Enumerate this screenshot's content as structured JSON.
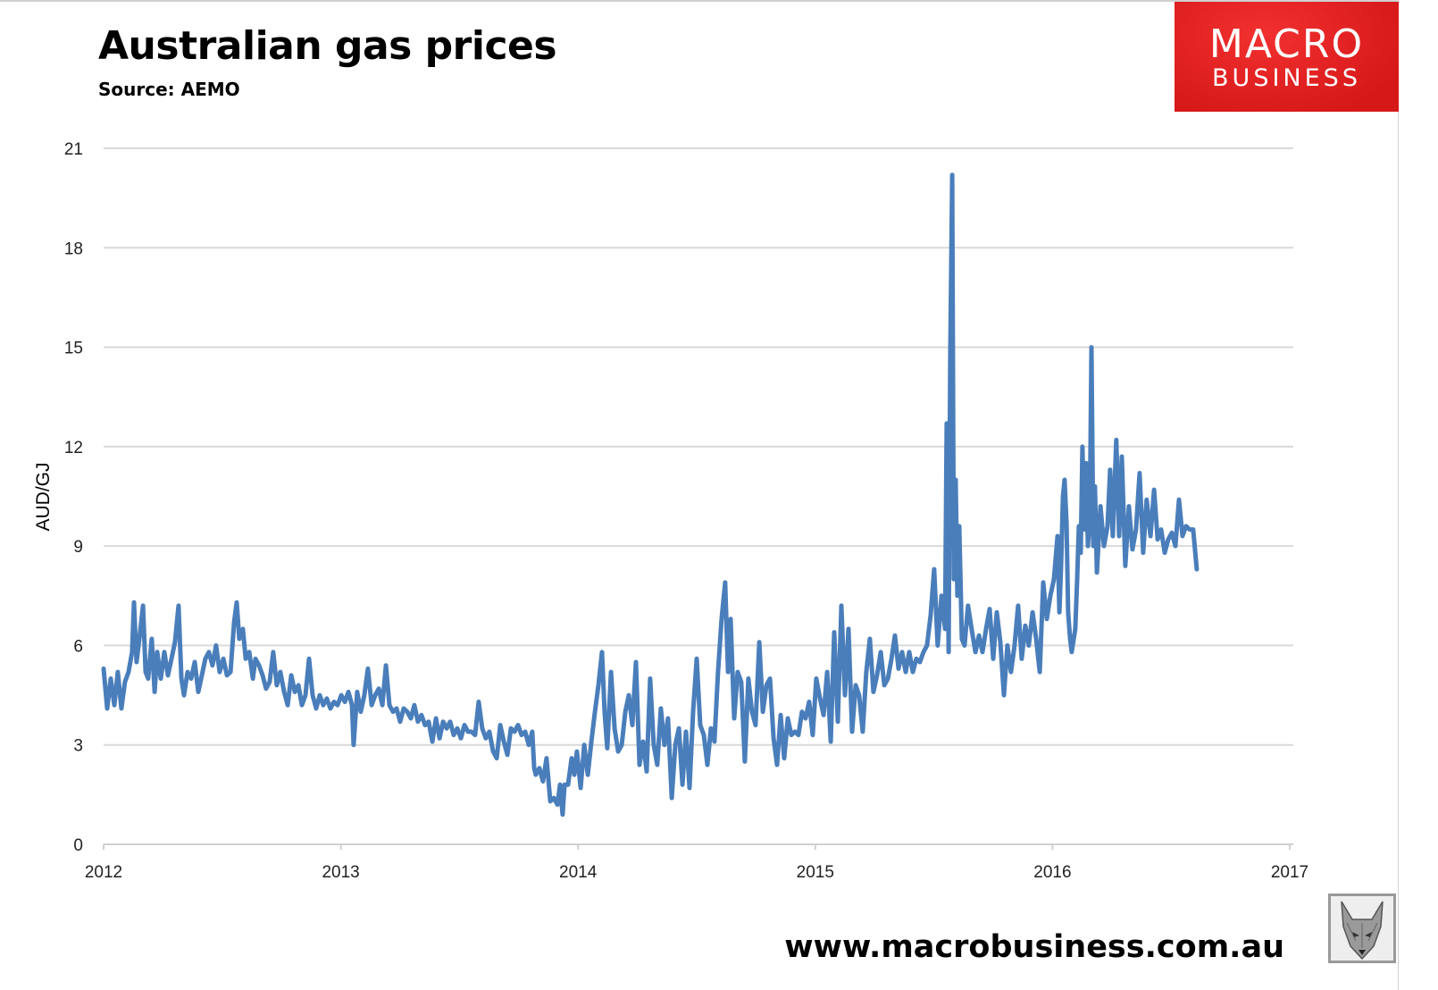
{
  "header": {
    "title": "Australian gas prices",
    "source": "Source: AEMO"
  },
  "logo": {
    "line1": "MACRO",
    "line2": "BUSINESS",
    "color": "#e02020"
  },
  "footer": {
    "website": "www.macrobusiness.com.au",
    "fox_logo": "fox-head-icon"
  },
  "chart_data": {
    "type": "line",
    "title": "Australian gas prices",
    "xlabel": "",
    "ylabel": "AUD/GJ",
    "xlim": [
      2012,
      2017
    ],
    "ylim": [
      0,
      21
    ],
    "x_ticks": [
      "2012",
      "2013",
      "2014",
      "2015",
      "2016",
      "2017"
    ],
    "y_ticks": [
      "0",
      "3",
      "6",
      "9",
      "12",
      "15",
      "18",
      "21"
    ],
    "grid": "horizontal",
    "line_color": "#4a7ebb",
    "series": [
      {
        "x": [
          2012.0,
          2012.015,
          2012.03,
          2012.045,
          2012.06,
          2012.075,
          2012.09,
          2012.105,
          2012.12,
          2012.128,
          2012.139,
          2012.154,
          2012.166,
          2012.177,
          2012.188,
          2012.203,
          2012.215,
          2012.226,
          2012.241,
          2012.256,
          2012.271,
          2012.286,
          2012.301,
          2012.316,
          2012.328,
          2012.339,
          2012.354,
          2012.369,
          2012.384,
          2012.399,
          2012.414,
          2012.429,
          2012.444,
          2012.459,
          2012.474,
          2012.489,
          2012.505,
          2012.52,
          2012.535,
          2012.55,
          2012.561,
          2012.572,
          2012.587,
          2012.599,
          2012.614,
          2012.629,
          2012.64,
          2012.655,
          2012.67,
          2012.685,
          2012.7,
          2012.715,
          2012.73,
          2012.745,
          2012.761,
          2012.776,
          2012.791,
          2012.806,
          2012.821,
          2012.836,
          2012.851,
          2012.866,
          2012.881,
          2012.896,
          2012.911,
          2012.926,
          2012.941,
          2012.956,
          2012.971,
          2012.986,
          2013.002,
          2013.017,
          2013.032,
          2013.047,
          2013.054,
          2013.069,
          2013.084,
          2013.099,
          2013.114,
          2013.13,
          2013.145,
          2013.16,
          2013.175,
          2013.19,
          2013.205,
          2013.22,
          2013.235,
          2013.25,
          2013.265,
          2013.28,
          2013.295,
          2013.31,
          2013.325,
          2013.34,
          2013.355,
          2013.37,
          2013.386,
          2013.401,
          2013.416,
          2013.431,
          2013.446,
          2013.461,
          2013.476,
          2013.491,
          2013.506,
          2013.521,
          2013.536,
          2013.551,
          2013.566,
          2013.581,
          2013.596,
          2013.611,
          2013.626,
          2013.642,
          2013.657,
          2013.672,
          2013.687,
          2013.702,
          2013.717,
          2013.732,
          2013.747,
          2013.762,
          2013.777,
          2013.792,
          2013.807,
          2013.815,
          2013.822,
          2013.837,
          2013.852,
          2013.867,
          2013.883,
          2013.898,
          2013.913,
          2013.924,
          2013.935,
          2013.943,
          2013.958,
          2013.973,
          2013.984,
          2013.995,
          2014.011,
          2014.026,
          2014.041,
          2014.056,
          2014.071,
          2014.086,
          2014.101,
          2014.112,
          2014.123,
          2014.139,
          2014.154,
          2014.169,
          2014.184,
          2014.199,
          2014.214,
          2014.229,
          2014.244,
          2014.259,
          2014.274,
          2014.289,
          2014.304,
          2014.319,
          2014.334,
          2014.349,
          2014.364,
          2014.379,
          2014.395,
          2014.41,
          2014.425,
          2014.44,
          2014.455,
          2014.47,
          2014.485,
          2014.5,
          2014.515,
          2014.53,
          2014.545,
          2014.56,
          2014.575,
          2014.59,
          2014.605,
          2014.62,
          2014.632,
          2014.643,
          2014.658,
          2014.673,
          2014.688,
          2014.703,
          2014.718,
          2014.733,
          2014.748,
          2014.764,
          2014.779,
          2014.794,
          2014.809,
          2014.824,
          2014.839,
          2014.854,
          2014.869,
          2014.884,
          2014.899,
          2014.914,
          2014.929,
          2014.944,
          2014.959,
          2014.974,
          2014.989,
          2015.004,
          2015.02,
          2015.035,
          2015.05,
          2015.065,
          2015.08,
          2015.095,
          2015.11,
          2015.125,
          2015.14,
          2015.155,
          2015.17,
          2015.185,
          2015.2,
          2015.215,
          2015.23,
          2015.245,
          2015.26,
          2015.276,
          2015.291,
          2015.306,
          2015.321,
          2015.336,
          2015.351,
          2015.366,
          2015.381,
          2015.396,
          2015.411,
          2015.426,
          2015.441,
          2015.456,
          2015.471,
          2015.486,
          2015.501,
          2015.516,
          2015.532,
          2015.547,
          2015.554,
          2015.562,
          2015.569,
          2015.577,
          2015.584,
          2015.592,
          2015.599,
          2015.607,
          2015.618,
          2015.629,
          2015.644,
          2015.659,
          2015.675,
          2015.69,
          2015.705,
          2015.72,
          2015.735,
          2015.75,
          2015.765,
          2015.78,
          2015.795,
          2015.81,
          2015.825,
          2015.84,
          2015.855,
          2015.87,
          2015.885,
          2015.9,
          2015.916,
          2015.931,
          2015.946,
          2015.961,
          2015.976,
          2015.991,
          2016.006,
          2016.021,
          2016.029,
          2016.036,
          2016.044,
          2016.051,
          2016.059,
          2016.066,
          2016.074,
          2016.081,
          2016.096,
          2016.104,
          2016.111,
          2016.119,
          2016.126,
          2016.134,
          2016.142,
          2016.149,
          2016.157,
          2016.164,
          2016.172,
          2016.179,
          2016.187,
          2016.202,
          2016.217,
          2016.232,
          2016.243,
          2016.254,
          2016.269,
          2016.281,
          2016.292,
          2016.307,
          2016.322,
          2016.337,
          2016.352,
          2016.367,
          2016.382,
          2016.397,
          2016.413,
          2016.428,
          2016.443,
          2016.458,
          2016.473,
          2016.488,
          2016.503,
          2016.518,
          2016.533,
          2016.548,
          2016.563,
          2016.578,
          2016.593,
          2016.608
        ],
        "y": [
          5.3,
          4.1,
          5.0,
          4.2,
          5.2,
          4.1,
          4.9,
          5.2,
          5.8,
          7.3,
          5.5,
          6.4,
          7.2,
          5.2,
          5.0,
          6.2,
          4.6,
          5.8,
          5.0,
          5.8,
          5.1,
          5.6,
          6.1,
          7.2,
          5.0,
          4.5,
          5.2,
          5.0,
          5.5,
          4.6,
          5.1,
          5.6,
          5.8,
          5.4,
          6.0,
          5.2,
          5.6,
          5.1,
          5.2,
          6.7,
          7.3,
          6.2,
          6.5,
          5.6,
          5.8,
          5.0,
          5.6,
          5.4,
          5.1,
          4.7,
          4.9,
          5.8,
          4.8,
          5.2,
          4.6,
          4.2,
          5.1,
          4.6,
          4.8,
          4.2,
          4.5,
          5.6,
          4.5,
          4.1,
          4.5,
          4.2,
          4.4,
          4.1,
          4.3,
          4.2,
          4.5,
          4.3,
          4.6,
          4.2,
          3.0,
          4.6,
          4.0,
          4.5,
          5.3,
          4.2,
          4.5,
          4.7,
          4.2,
          5.4,
          4.2,
          4.0,
          4.1,
          3.7,
          4.1,
          4.0,
          3.8,
          4.2,
          3.7,
          3.9,
          3.6,
          3.7,
          3.1,
          3.8,
          3.2,
          3.7,
          3.5,
          3.7,
          3.3,
          3.5,
          3.2,
          3.6,
          3.4,
          3.4,
          3.3,
          4.3,
          3.5,
          3.2,
          3.4,
          2.8,
          2.6,
          3.6,
          3.1,
          2.7,
          3.5,
          3.4,
          3.6,
          3.3,
          3.4,
          3.0,
          3.4,
          2.3,
          2.1,
          2.3,
          1.9,
          2.6,
          1.3,
          1.4,
          1.2,
          1.8,
          0.9,
          1.8,
          1.8,
          2.6,
          2.1,
          2.8,
          1.7,
          3.0,
          2.1,
          3.1,
          4.0,
          4.8,
          5.8,
          4.0,
          2.9,
          5.2,
          3.5,
          2.8,
          3.0,
          4.0,
          4.5,
          3.6,
          5.5,
          2.4,
          3.1,
          2.2,
          5.0,
          3.0,
          2.4,
          4.1,
          3.0,
          3.8,
          1.4,
          3.0,
          3.5,
          1.8,
          3.4,
          1.7,
          4.0,
          5.6,
          3.6,
          3.3,
          2.4,
          3.5,
          3.1,
          5.2,
          6.8,
          7.9,
          5.2,
          6.8,
          3.8,
          5.2,
          4.9,
          2.5,
          5.0,
          4.0,
          3.6,
          6.1,
          4.0,
          4.8,
          5.0,
          3.2,
          2.4,
          3.9,
          2.6,
          3.8,
          3.3,
          3.4,
          3.3,
          4.0,
          3.8,
          4.3,
          3.3,
          5.0,
          4.4,
          3.9,
          5.2,
          3.1,
          6.4,
          3.7,
          7.2,
          4.5,
          6.5,
          3.4,
          4.8,
          4.5,
          3.4,
          5.2,
          6.2,
          4.6,
          5.1,
          5.8,
          4.8,
          5.0,
          5.6,
          6.3,
          5.3,
          5.8,
          5.2,
          5.8,
          5.2,
          5.6,
          5.5,
          5.8,
          6.0,
          6.9,
          8.3,
          6.0,
          7.5,
          6.5,
          12.7,
          5.8,
          14.7,
          20.2,
          8.0,
          11.0,
          7.5,
          9.6,
          6.2,
          6.0,
          7.2,
          6.5,
          5.8,
          6.3,
          5.8,
          6.5,
          7.1,
          5.6,
          7.0,
          6.1,
          4.5,
          6.0,
          5.2,
          6.0,
          7.2,
          5.6,
          6.6,
          6.0,
          7.0,
          6.2,
          5.2,
          7.9,
          6.8,
          7.5,
          8.0,
          9.3,
          7.0,
          8.4,
          10.5,
          11.0,
          9.7,
          7.0,
          6.2,
          5.8,
          6.5,
          8.0,
          9.6,
          8.8,
          12.0,
          9.5,
          11.5,
          9.0,
          9.7,
          15.0,
          9.0,
          10.8,
          8.2,
          10.2,
          9.0,
          9.6,
          11.3,
          9.3,
          12.2,
          9.3,
          11.7,
          8.4,
          10.2,
          8.9,
          9.5,
          11.2,
          8.8,
          10.4,
          9.3,
          10.7,
          9.2,
          9.5,
          8.8,
          9.2,
          9.4,
          9.0,
          10.4,
          9.3,
          9.6,
          9.5,
          9.5,
          8.3
        ]
      }
    ]
  }
}
